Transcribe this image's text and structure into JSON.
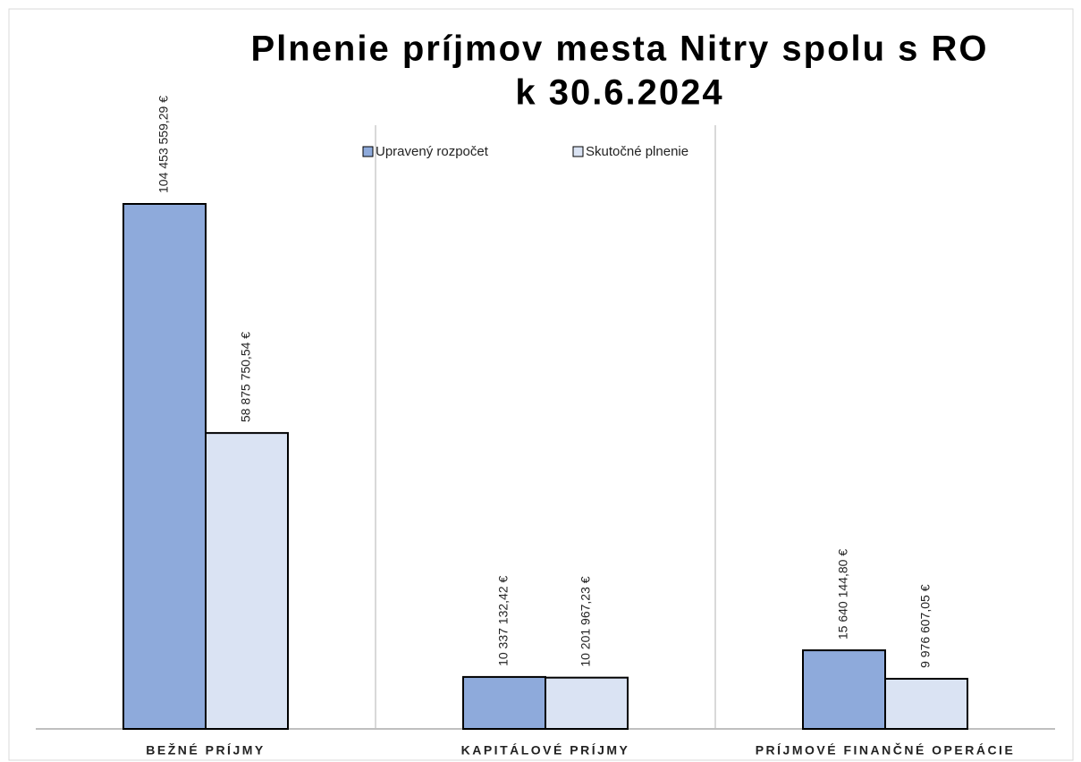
{
  "chart_data": {
    "type": "bar",
    "title": [
      "Plnenie príjmov mesta Nitry spolu s RO",
      "k 30.6.2024"
    ],
    "categories": [
      "BEŽNÉ PRÍJMY",
      "KAPITÁLOVÉ PRÍJMY",
      "PRÍJMOVÉ FINANČNÉ OPERÁCIE"
    ],
    "series": [
      {
        "name": "Upravený rozpočet",
        "color": "#8eaadb",
        "values": [
          104453559.29,
          10337132.42,
          15640144.8
        ],
        "value_labels": [
          "104 453 559,29 €",
          "10 337 132,42 €",
          "15 640 144,80 €"
        ]
      },
      {
        "name": "Skutočné plnenie",
        "color": "#dae3f3",
        "values": [
          58875750.54,
          10201967.23,
          9976607.05
        ],
        "value_labels": [
          "58 875 750,54 €",
          "10 201 967,23 €",
          "9 976 607,05 €"
        ]
      }
    ]
  }
}
